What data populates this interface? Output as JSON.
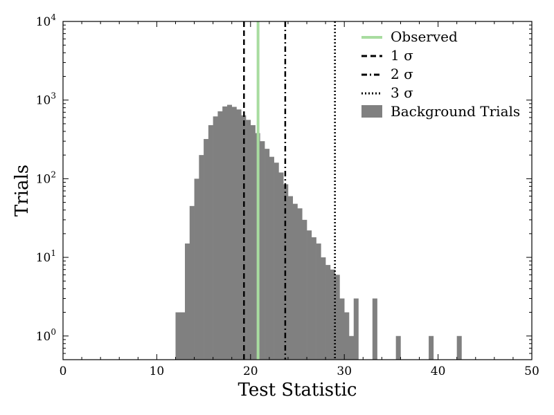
{
  "chart_data": {
    "type": "histogram",
    "title": "",
    "xlabel": "Test Statistic",
    "ylabel": "Trials",
    "xlim": [
      0,
      50
    ],
    "ylim": [
      0.5,
      10000
    ],
    "yscale": "log",
    "grid": false,
    "legend_position": "top-right",
    "x_ticks": [
      "0",
      "10",
      "20",
      "30",
      "40",
      "50"
    ],
    "y_ticks": [
      {
        "base": "10",
        "exp": "0"
      },
      {
        "base": "10",
        "exp": "1"
      },
      {
        "base": "10",
        "exp": "2"
      },
      {
        "base": "10",
        "exp": "3"
      },
      {
        "base": "10",
        "exp": "4"
      }
    ],
    "bin_width": 0.5,
    "histogram": {
      "name": "Background Trials",
      "color": "#808080",
      "bins": [
        [
          12.0,
          2
        ],
        [
          12.5,
          2
        ],
        [
          13.0,
          15
        ],
        [
          13.5,
          45
        ],
        [
          14.0,
          100
        ],
        [
          14.5,
          200
        ],
        [
          15.0,
          320
        ],
        [
          15.5,
          480
        ],
        [
          16.0,
          620
        ],
        [
          16.5,
          720
        ],
        [
          17.0,
          830
        ],
        [
          17.5,
          870
        ],
        [
          18.0,
          820
        ],
        [
          18.5,
          760
        ],
        [
          19.0,
          640
        ],
        [
          19.5,
          560
        ],
        [
          20.0,
          480
        ],
        [
          20.5,
          380
        ],
        [
          21.0,
          300
        ],
        [
          21.5,
          240
        ],
        [
          22.0,
          190
        ],
        [
          22.5,
          160
        ],
        [
          23.0,
          120
        ],
        [
          23.5,
          85
        ],
        [
          24.0,
          60
        ],
        [
          24.5,
          48
        ],
        [
          25.0,
          42
        ],
        [
          25.5,
          30
        ],
        [
          26.0,
          22
        ],
        [
          26.5,
          18
        ],
        [
          27.0,
          15
        ],
        [
          27.5,
          10
        ],
        [
          28.0,
          8
        ],
        [
          28.5,
          7
        ],
        [
          29.0,
          6
        ],
        [
          29.5,
          3
        ],
        [
          30.0,
          2
        ],
        [
          30.5,
          1
        ],
        [
          31.0,
          3
        ],
        [
          33.0,
          3
        ],
        [
          35.5,
          1
        ],
        [
          39.0,
          1
        ],
        [
          42.0,
          1
        ]
      ]
    },
    "vlines": [
      {
        "name": "Observed",
        "x": 20.8,
        "color": "#a8dca0",
        "style": "solid"
      },
      {
        "name": "1 σ",
        "x": 19.3,
        "color": "#000000",
        "style": "dashed"
      },
      {
        "name": "2 σ",
        "x": 23.7,
        "color": "#000000",
        "style": "dashdot"
      },
      {
        "name": "3 σ",
        "x": 29.0,
        "color": "#000000",
        "style": "dotted"
      }
    ],
    "legend": [
      "Observed",
      "1 σ",
      "2 σ",
      "3 σ",
      "Background Trials"
    ]
  }
}
